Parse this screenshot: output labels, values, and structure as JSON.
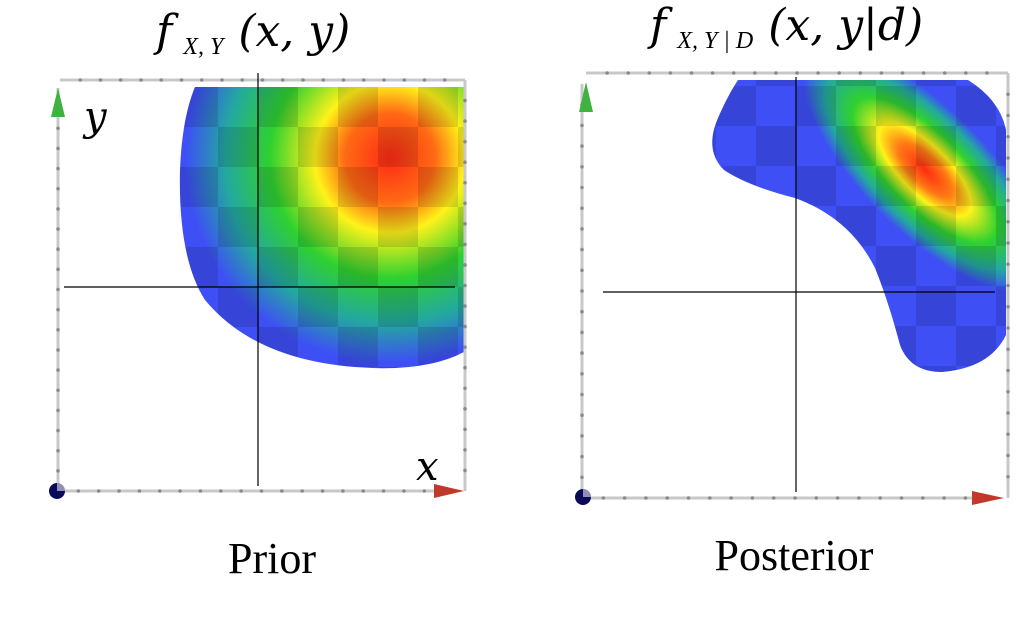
{
  "panels": [
    {
      "title": {
        "f": "f",
        "sub": "X, Y",
        "args": "(x, y)"
      },
      "caption": "Prior",
      "axis_x_label": "x",
      "axis_y_label": "y"
    },
    {
      "title": {
        "f": "f",
        "sub": "X, Y | D",
        "args": "(x, y|d)"
      },
      "caption": "Posterior"
    }
  ],
  "colors": {
    "density_low": "#3d4ff5",
    "density_mid": "#2fd12f",
    "density_high_a": "#fff21a",
    "density_high_b": "#ff2a14",
    "frame": "#c8c8c8",
    "y_axis_arrow": "#3fb23f",
    "x_axis_arrow": "#c0392b",
    "origin_dot": "#0a0a5a"
  }
}
